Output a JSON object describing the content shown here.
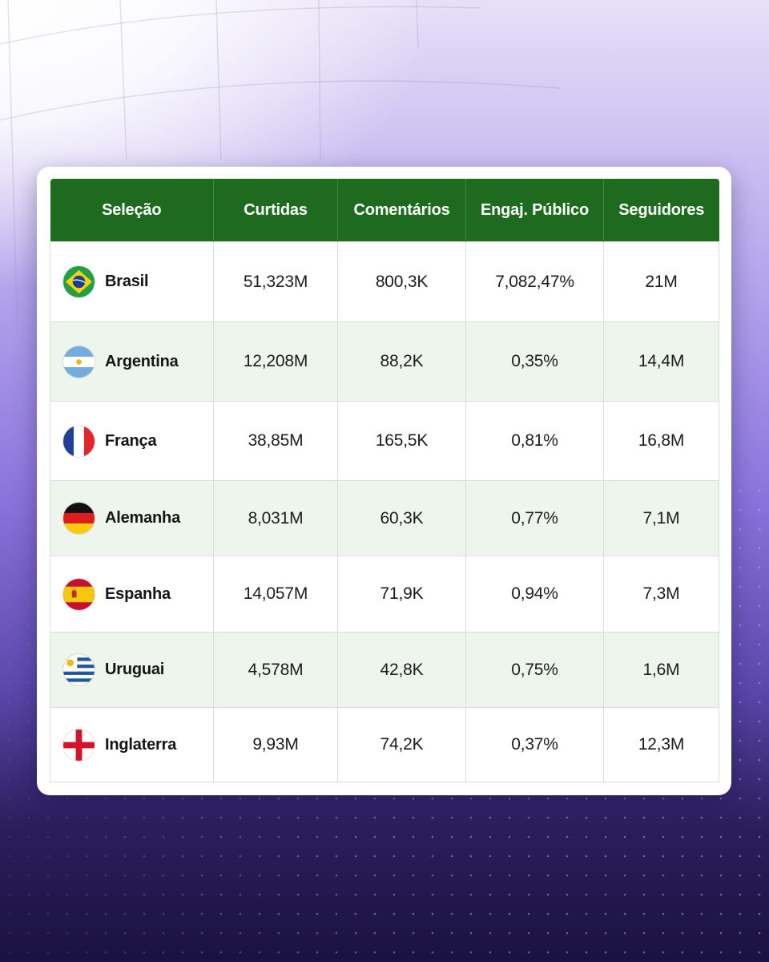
{
  "chart_data": {
    "type": "table",
    "columns": [
      "Seleção",
      "Curtidas",
      "Comentários",
      "Engaj. Público",
      "Seguidores"
    ],
    "rows": [
      {
        "team": "Brasil",
        "flag": "brazil-flag-icon",
        "curtidas": "51,323M",
        "comentarios": "800,3K",
        "engajamento": "7,082,47%",
        "seguidores": "21M"
      },
      {
        "team": "Argentina",
        "flag": "argentina-flag-icon",
        "curtidas": "12,208M",
        "comentarios": "88,2K",
        "engajamento": "0,35%",
        "seguidores": "14,4M"
      },
      {
        "team": "França",
        "flag": "france-flag-icon",
        "curtidas": "38,85M",
        "comentarios": "165,5K",
        "engajamento": "0,81%",
        "seguidores": "16,8M"
      },
      {
        "team": "Alemanha",
        "flag": "germany-flag-icon",
        "curtidas": "8,031M",
        "comentarios": "60,3K",
        "engajamento": "0,77%",
        "seguidores": "7,1M"
      },
      {
        "team": "Espanha",
        "flag": "spain-flag-icon",
        "curtidas": "14,057M",
        "comentarios": "71,9K",
        "engajamento": "0,94%",
        "seguidores": "7,3M"
      },
      {
        "team": "Uruguai",
        "flag": "uruguay-flag-icon",
        "curtidas": "4,578M",
        "comentarios": "42,8K",
        "engajamento": "0,75%",
        "seguidores": "1,6M"
      },
      {
        "team": "Inglaterra",
        "flag": "england-flag-icon",
        "curtidas": "9,93M",
        "comentarios": "74,2K",
        "engajamento": "0,37%",
        "seguidores": "12,3M"
      }
    ]
  },
  "colors": {
    "header_bg": "#1e6b1f",
    "header_text": "#ffffff",
    "row_alt_bg": "#eef5ec",
    "row_bg": "#ffffff"
  }
}
